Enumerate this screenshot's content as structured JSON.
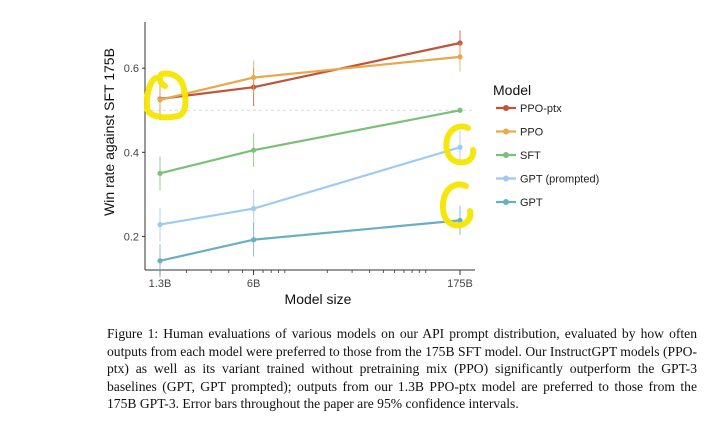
{
  "chart_data": {
    "type": "line",
    "xlabel": "Model size",
    "ylabel": "Win rate against SFT 175B",
    "x_scale": "log",
    "categories": [
      "1.3B",
      "6B",
      "175B"
    ],
    "x_values_billions": [
      1.3,
      6,
      175
    ],
    "ylim": [
      0.12,
      0.71
    ],
    "yticks": [
      0.2,
      0.4,
      0.6
    ],
    "ytick_labels": [
      "0.2",
      "0.4",
      "0.6"
    ],
    "reference_line": 0.5,
    "legend_title": "Model",
    "legend_position": "right",
    "series": [
      {
        "name": "PPO-ptx",
        "color": "#c0533a",
        "values": [
          0.527,
          0.555,
          0.66
        ],
        "errors": [
          0.05,
          0.045,
          0.03
        ]
      },
      {
        "name": "PPO",
        "color": "#e9a84c",
        "values": [
          0.525,
          0.578,
          0.627
        ],
        "errors": [
          0.045,
          0.04,
          0.035
        ]
      },
      {
        "name": "SFT",
        "color": "#7cbf79",
        "values": [
          0.35,
          0.405,
          0.5
        ],
        "errors": [
          0.04,
          0.04,
          0.0
        ]
      },
      {
        "name": "GPT (prompted)",
        "color": "#9fcaf1",
        "values": [
          0.228,
          0.266,
          0.412
        ],
        "errors": [
          0.04,
          0.045,
          0.04
        ]
      },
      {
        "name": "GPT",
        "color": "#6aaec4",
        "values": [
          0.142,
          0.192,
          0.238
        ],
        "errors": [
          0.04,
          0.04,
          0.035
        ]
      }
    ]
  },
  "caption": "Figure 1: Human evaluations of various models on our API prompt distribution, evaluated by how often outputs from each model were preferred to those from the 175B SFT model. Our InstructGPT models (PPO-ptx) as well as its variant trained without pretraining mix (PPO) significantly outperform the GPT-3 baselines (GPT, GPT prompted); outputs from our 1.3B PPO-ptx model are preferred to those from the 175B GPT-3. Error bars throughout the paper are 95% confidence intervals."
}
